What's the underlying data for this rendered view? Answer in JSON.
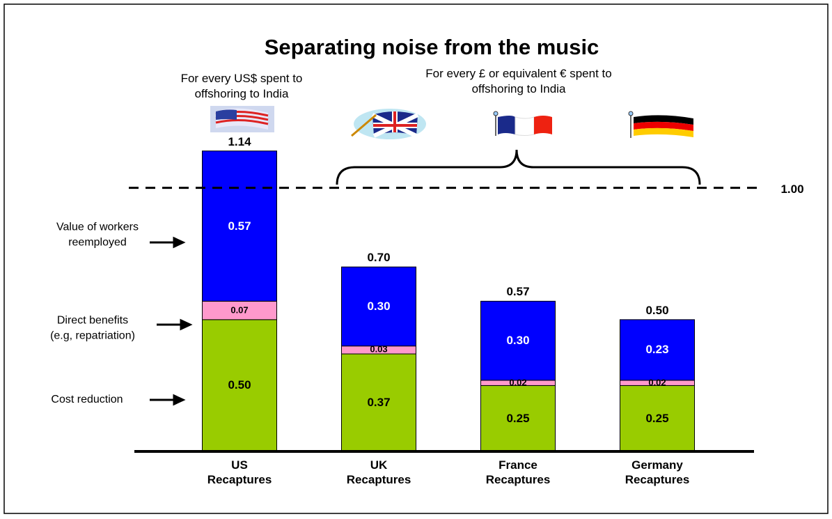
{
  "chart_data": {
    "type": "stacked_bar",
    "title": "Separating noise from the music",
    "annotations": [
      "For every US$ spent to\noffshoring to India",
      "For every £ or equivalent € spent to\noffshoring to India"
    ],
    "categories": [
      "US\nRecaptures",
      "UK\nRecaptures",
      "France\nRecaptures",
      "Germany\nRecaptures"
    ],
    "series": [
      {
        "name": "Cost reduction",
        "color": "#99cc00",
        "label_color": "#000000",
        "values": [
          0.5,
          0.37,
          0.25,
          0.25
        ],
        "value_labels": [
          "0.50",
          "0.37",
          "0.25",
          "0.25"
        ]
      },
      {
        "name": "Direct benefits\n(e.g, repatriation)",
        "color": "#ff99cc",
        "label_color": "#000000",
        "values": [
          0.07,
          0.03,
          0.02,
          0.02
        ],
        "value_labels": [
          "0.07",
          "0.03",
          "0.02",
          "0.02"
        ]
      },
      {
        "name": "Value of workers\nreemployed",
        "color": "#0000ff",
        "label_color": "#ffffff",
        "values": [
          0.57,
          0.3,
          0.3,
          0.23
        ],
        "value_labels": [
          "0.57",
          "0.30",
          "0.30",
          "0.23"
        ]
      }
    ],
    "totals": [
      1.14,
      0.7,
      0.57,
      0.5
    ],
    "total_labels": [
      "1.14",
      "0.70",
      "0.57",
      "0.50"
    ],
    "reference_line": {
      "value": 1,
      "label": "1.00"
    },
    "ylim": [
      0,
      1.2
    ]
  }
}
